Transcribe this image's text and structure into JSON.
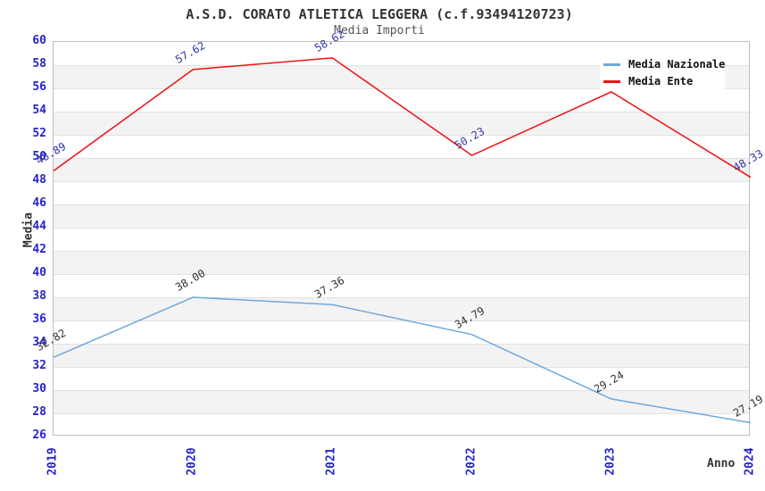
{
  "title": "A.S.D. CORATO ATLETICA LEGGERA (c.f.93494120723)",
  "subtitle": "Media Importi",
  "colors": {
    "tick_label": "#2424cc",
    "band_gray": "#f3f3f3",
    "gridline": "#e2e2e2",
    "plot_border": "#bdbdbd",
    "title_text": "#333333"
  },
  "chart_data": {
    "type": "line",
    "x": [
      "2019",
      "2020",
      "2021",
      "2022",
      "2023",
      "2024"
    ],
    "xlabel": "Anno",
    "ylabel": "Media",
    "ylim": [
      26,
      60
    ],
    "yticks": [
      26,
      28,
      30,
      32,
      34,
      36,
      38,
      40,
      42,
      44,
      46,
      48,
      50,
      52,
      54,
      56,
      58,
      60
    ],
    "grid": "horizontal-alternating-bands",
    "legend_position": "top-right-inside",
    "series": [
      {
        "name": "Media Nazionale",
        "color": "#6FA8DC",
        "label_color": "#333333",
        "values": [
          32.82,
          38.0,
          37.36,
          34.79,
          29.24,
          27.19
        ],
        "point_labels": [
          "32.82",
          "38.00",
          "37.36",
          "34.79",
          "29.24",
          "27.19"
        ]
      },
      {
        "name": "Media Ente",
        "color": "#EE1111",
        "label_color": "#3333AA",
        "values": [
          48.89,
          57.62,
          58.62,
          50.23,
          55.7,
          48.33
        ],
        "point_labels": [
          "48.89",
          "57.62",
          "58.62",
          "50.23",
          "",
          "48.33"
        ],
        "note": "2023 point label hidden behind legend box; value estimated from axis"
      }
    ]
  }
}
